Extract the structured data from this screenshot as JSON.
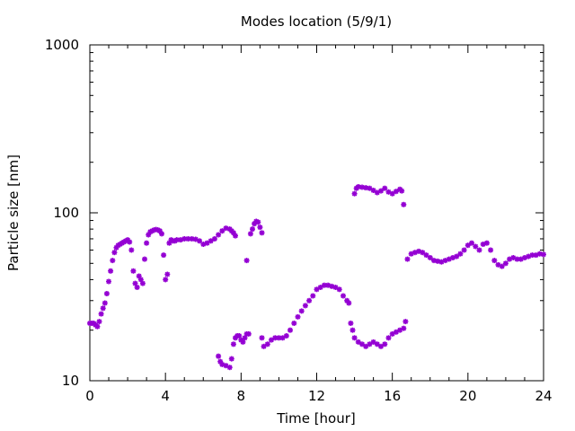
{
  "chart_data": {
    "type": "scatter",
    "title": "Modes location (5/9/1)",
    "xlabel": "Time [hour]",
    "ylabel": "Particle size [nm]",
    "xlim": [
      0,
      24
    ],
    "ylim": [
      10,
      1000
    ],
    "yscale": "log",
    "grid": false,
    "legend": "none",
    "marker_color": "#9400d3",
    "x_ticks": [
      0,
      4,
      8,
      12,
      16,
      20,
      24
    ],
    "x_tick_labels": [
      "0",
      "4",
      "8",
      "12",
      "16",
      "20",
      "24"
    ],
    "y_ticks": [
      10,
      100,
      1000
    ],
    "y_tick_labels": [
      "10",
      "100",
      "1000"
    ],
    "series": [
      {
        "points": [
          [
            0.0,
            22
          ],
          [
            0.1,
            22
          ],
          [
            0.2,
            22
          ],
          [
            0.3,
            21.5
          ],
          [
            0.4,
            21
          ],
          [
            0.5,
            22.5
          ],
          [
            0.6,
            25
          ],
          [
            0.7,
            27
          ],
          [
            0.8,
            29
          ],
          [
            0.9,
            33
          ],
          [
            1.0,
            39
          ],
          [
            1.1,
            45
          ],
          [
            1.2,
            52
          ],
          [
            1.3,
            58
          ],
          [
            1.4,
            62
          ],
          [
            1.5,
            64
          ],
          [
            1.6,
            65
          ],
          [
            1.7,
            66
          ],
          [
            1.8,
            67
          ],
          [
            1.9,
            68
          ],
          [
            2.0,
            69
          ],
          [
            2.1,
            67
          ],
          [
            2.2,
            60
          ],
          [
            2.3,
            45
          ],
          [
            2.4,
            38
          ],
          [
            2.5,
            36
          ],
          [
            2.6,
            42
          ],
          [
            2.7,
            40
          ],
          [
            2.8,
            38
          ],
          [
            2.9,
            53
          ],
          [
            3.0,
            66
          ],
          [
            3.1,
            74
          ],
          [
            3.2,
            77
          ],
          [
            3.3,
            78
          ],
          [
            3.4,
            79
          ],
          [
            3.5,
            79.5
          ],
          [
            3.6,
            79
          ],
          [
            3.7,
            78
          ],
          [
            3.8,
            75
          ],
          [
            3.9,
            56
          ],
          [
            4.0,
            40
          ],
          [
            4.1,
            43
          ],
          [
            4.2,
            66
          ],
          [
            4.3,
            69
          ],
          [
            4.4,
            68
          ],
          [
            4.5,
            68
          ],
          [
            4.6,
            69
          ],
          [
            4.8,
            69
          ],
          [
            5.0,
            70
          ],
          [
            5.2,
            70
          ],
          [
            5.4,
            70
          ],
          [
            5.6,
            69.5
          ],
          [
            5.8,
            68
          ],
          [
            6.0,
            65
          ],
          [
            6.2,
            66
          ],
          [
            6.4,
            68
          ],
          [
            6.6,
            70
          ],
          [
            6.8,
            74
          ],
          [
            7.0,
            78
          ],
          [
            7.2,
            81
          ],
          [
            7.4,
            80
          ],
          [
            7.5,
            78
          ],
          [
            7.6,
            76
          ],
          [
            7.7,
            73
          ],
          [
            8.3,
            52
          ],
          [
            8.5,
            75
          ],
          [
            8.6,
            80
          ],
          [
            8.7,
            86
          ],
          [
            8.8,
            89
          ],
          [
            8.9,
            88
          ],
          [
            9.0,
            82
          ],
          [
            9.1,
            76
          ]
        ]
      },
      {
        "points": [
          [
            6.8,
            14
          ],
          [
            6.9,
            13
          ],
          [
            7.0,
            12.5
          ],
          [
            7.2,
            12.3
          ],
          [
            7.4,
            12
          ],
          [
            7.5,
            13.5
          ],
          [
            7.6,
            16.5
          ],
          [
            7.7,
            18
          ],
          [
            7.8,
            18.5
          ],
          [
            7.9,
            18.5
          ],
          [
            8.0,
            17.5
          ],
          [
            8.1,
            17
          ],
          [
            8.2,
            18
          ],
          [
            8.3,
            19
          ],
          [
            8.4,
            19
          ],
          [
            9.1,
            18
          ],
          [
            9.2,
            16
          ],
          [
            9.4,
            16.5
          ],
          [
            9.6,
            17.5
          ],
          [
            9.8,
            18
          ],
          [
            10.0,
            18
          ],
          [
            10.2,
            18
          ],
          [
            10.4,
            18.5
          ],
          [
            10.6,
            20
          ],
          [
            10.8,
            22
          ],
          [
            11.0,
            24
          ],
          [
            11.2,
            26
          ],
          [
            11.4,
            28
          ],
          [
            11.6,
            30
          ],
          [
            11.8,
            32
          ],
          [
            12.0,
            35
          ],
          [
            12.2,
            36
          ],
          [
            12.4,
            37
          ],
          [
            12.6,
            37
          ],
          [
            12.8,
            36.5
          ],
          [
            13.0,
            36
          ],
          [
            13.2,
            35
          ],
          [
            13.4,
            32
          ],
          [
            13.6,
            30
          ],
          [
            13.7,
            29
          ],
          [
            13.8,
            22
          ],
          [
            13.9,
            20
          ],
          [
            14.0,
            18
          ],
          [
            14.2,
            17
          ],
          [
            14.4,
            16.5
          ],
          [
            14.6,
            16
          ],
          [
            14.8,
            16.5
          ],
          [
            15.0,
            17
          ],
          [
            15.2,
            16.5
          ],
          [
            15.4,
            16
          ],
          [
            15.6,
            16.5
          ],
          [
            15.8,
            18
          ],
          [
            16.0,
            19
          ],
          [
            16.2,
            19.5
          ],
          [
            16.4,
            20
          ],
          [
            16.6,
            20.5
          ],
          [
            16.7,
            22.5
          ]
        ]
      },
      {
        "points": [
          [
            14.0,
            130
          ],
          [
            14.1,
            140
          ],
          [
            14.2,
            143
          ],
          [
            14.4,
            142
          ],
          [
            14.6,
            141
          ],
          [
            14.8,
            140
          ],
          [
            15.0,
            136
          ],
          [
            15.2,
            132
          ],
          [
            15.4,
            135
          ],
          [
            15.6,
            140
          ],
          [
            15.8,
            133
          ],
          [
            16.0,
            130
          ],
          [
            16.2,
            134
          ],
          [
            16.4,
            138
          ],
          [
            16.5,
            135
          ],
          [
            16.6,
            112
          ]
        ]
      },
      {
        "points": [
          [
            16.8,
            53
          ],
          [
            17.0,
            57
          ],
          [
            17.2,
            58
          ],
          [
            17.4,
            59
          ],
          [
            17.6,
            58
          ],
          [
            17.8,
            56
          ],
          [
            18.0,
            54
          ],
          [
            18.2,
            52
          ],
          [
            18.4,
            51.5
          ],
          [
            18.6,
            51
          ],
          [
            18.8,
            52
          ],
          [
            19.0,
            53
          ],
          [
            19.2,
            54
          ],
          [
            19.4,
            55
          ],
          [
            19.6,
            57
          ],
          [
            19.8,
            60
          ],
          [
            20.0,
            64
          ],
          [
            20.2,
            66
          ],
          [
            20.4,
            63
          ],
          [
            20.6,
            60
          ],
          [
            20.8,
            65
          ],
          [
            21.0,
            66
          ],
          [
            21.2,
            60
          ],
          [
            21.4,
            52
          ],
          [
            21.6,
            49
          ],
          [
            21.8,
            48
          ],
          [
            22.0,
            50
          ],
          [
            22.2,
            53
          ],
          [
            22.4,
            54
          ],
          [
            22.6,
            53
          ],
          [
            22.8,
            53
          ],
          [
            23.0,
            54
          ],
          [
            23.2,
            55
          ],
          [
            23.4,
            56
          ],
          [
            23.6,
            56
          ],
          [
            23.8,
            57
          ],
          [
            24.0,
            56.5
          ]
        ]
      }
    ]
  }
}
